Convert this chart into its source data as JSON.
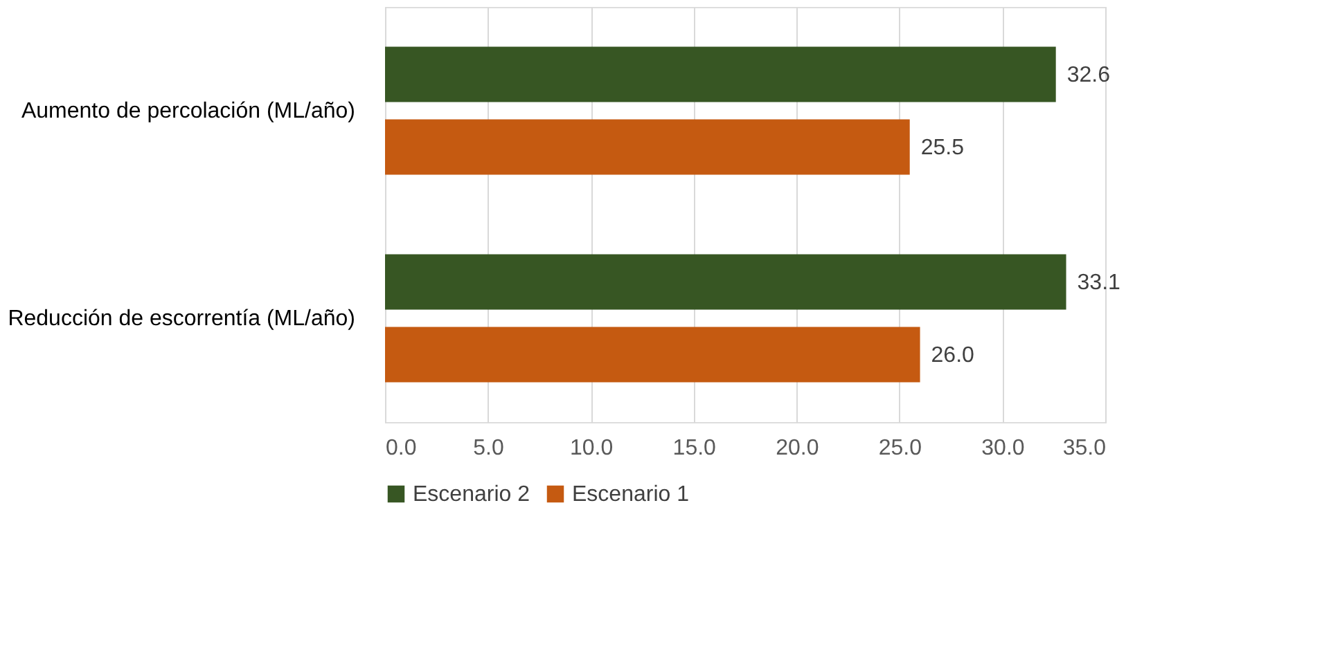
{
  "chart_data": {
    "type": "bar",
    "orientation": "horizontal",
    "categories": [
      "Aumento de percolación (ML/año)",
      "Reducción de escorrentía (ML/año)"
    ],
    "series": [
      {
        "name": "Escenario 2",
        "color": "#375623",
        "values": [
          32.6,
          33.1
        ],
        "value_labels": [
          "32.6",
          "33.1"
        ]
      },
      {
        "name": "Escenario 1",
        "color": "#c55a11",
        "values": [
          25.5,
          26.0
        ],
        "value_labels": [
          "25.5",
          "26.0"
        ]
      }
    ],
    "xlim": [
      0,
      35
    ],
    "xticks": [
      {
        "value": 0,
        "label": "0.0"
      },
      {
        "value": 5,
        "label": "5.0"
      },
      {
        "value": 10,
        "label": "10.0"
      },
      {
        "value": 15,
        "label": "15.0"
      },
      {
        "value": 20,
        "label": "20.0"
      },
      {
        "value": 25,
        "label": "25.0"
      },
      {
        "value": 30,
        "label": "30.0"
      },
      {
        "value": 35,
        "label": "35.0"
      }
    ],
    "grid": "x",
    "legend": "bottom"
  }
}
